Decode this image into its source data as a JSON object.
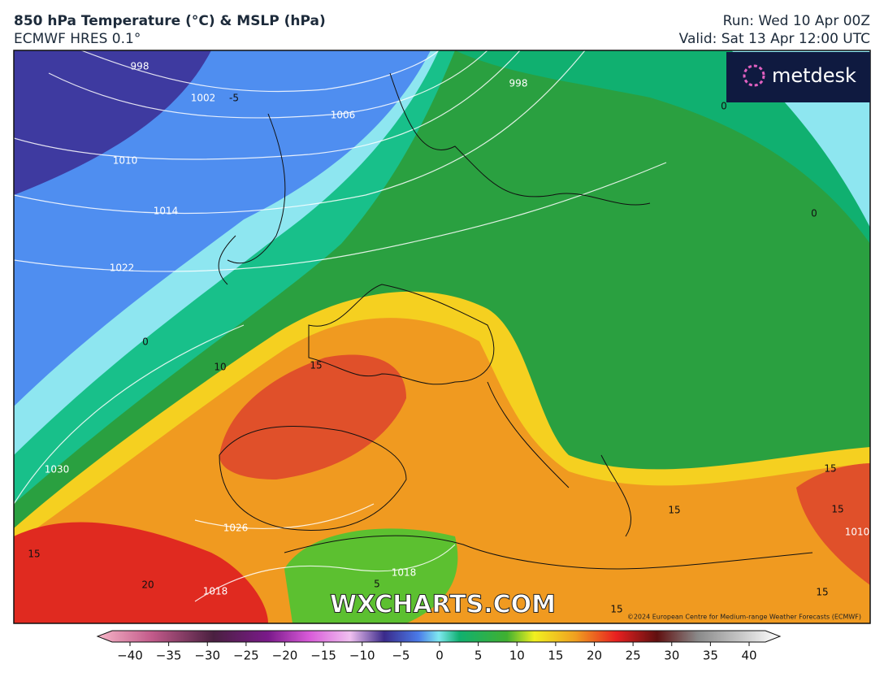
{
  "header": {
    "title": "850 hPa Temperature (°C) & MSLP (hPa)",
    "subtitle": "ECMWF HRES 0.1°",
    "run": "Run: Wed 10 Apr 00Z",
    "valid": "Valid: Sat 13 Apr 12:00 UTC"
  },
  "logo": "metdesk",
  "watermark": "WXCHARTS.COM",
  "copyright": "©2024 European Centre for Medium-range Weather Forecasts (ECMWF)",
  "isobar_labels": [
    998,
    1002,
    1006,
    1010,
    1014,
    1022,
    998,
    1030,
    1026,
    1018,
    1018,
    1010
  ],
  "temperature_labels": [
    -5,
    0,
    0,
    0,
    10,
    15,
    15,
    20,
    5,
    15,
    15,
    15,
    15,
    15
  ],
  "colorbar": {
    "range": [
      -40,
      40
    ],
    "ticks": [
      {
        "value": -40,
        "label": "−40"
      },
      {
        "value": -35,
        "label": "−35"
      },
      {
        "value": -30,
        "label": "−30"
      },
      {
        "value": -25,
        "label": "−25"
      },
      {
        "value": -20,
        "label": "−20"
      },
      {
        "value": -15,
        "label": "−15"
      },
      {
        "value": -10,
        "label": "−10"
      },
      {
        "value": -5,
        "label": "−5"
      },
      0,
      5,
      10,
      15,
      20,
      25,
      30,
      35,
      40
    ]
  }
}
